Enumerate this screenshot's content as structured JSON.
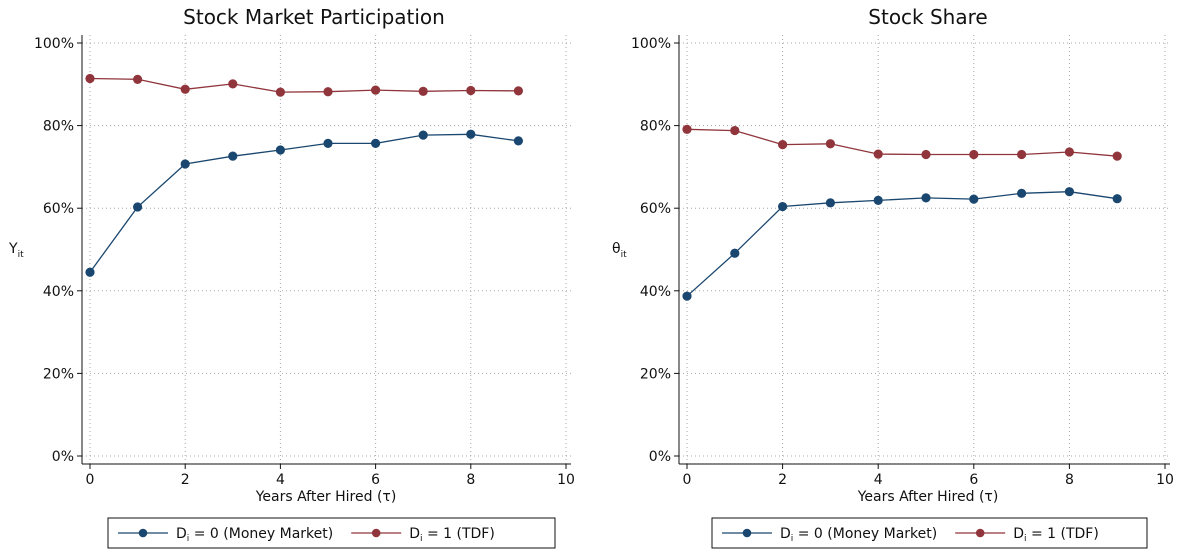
{
  "chart_data": [
    {
      "type": "line",
      "title": "Stock Market Participation",
      "xlabel": "Years After Hired (τ)",
      "ylabel": "Y",
      "ylabel_sub": "it",
      "xlim": [
        0,
        10
      ],
      "ylim": [
        0,
        1
      ],
      "xticks": [
        "0",
        "2",
        "4",
        "6",
        "8",
        "10"
      ],
      "yticks": [
        "0%",
        "20%",
        "40%",
        "60%",
        "80%",
        "100%"
      ],
      "grid": true,
      "legend_placement": "bottom",
      "x": [
        0,
        1,
        2,
        3,
        4,
        5,
        6,
        7,
        8,
        9
      ],
      "series": [
        {
          "name": "D = 0 (Money Market)",
          "legend_var": "D",
          "legend_sub": "i",
          "legend_rest": " = 0 (Money Market)",
          "color": "#1a476f",
          "values": [
            0.445,
            0.603,
            0.707,
            0.726,
            0.741,
            0.757,
            0.757,
            0.777,
            0.779,
            0.763
          ]
        },
        {
          "name": "D = 1 (TDF)",
          "legend_var": "D",
          "legend_sub": "i",
          "legend_rest": " = 1 (TDF)",
          "color": "#90353b",
          "values": [
            0.914,
            0.912,
            0.888,
            0.901,
            0.881,
            0.882,
            0.886,
            0.883,
            0.885,
            0.884
          ]
        }
      ]
    },
    {
      "type": "line",
      "title": "Stock Share",
      "xlabel": "Years After Hired (τ)",
      "ylabel": "θ",
      "ylabel_sub": "it",
      "xlim": [
        0,
        10
      ],
      "ylim": [
        0,
        1
      ],
      "xticks": [
        "0",
        "2",
        "4",
        "6",
        "8",
        "10"
      ],
      "yticks": [
        "0%",
        "20%",
        "40%",
        "60%",
        "80%",
        "100%"
      ],
      "grid": true,
      "legend_placement": "bottom",
      "x": [
        0,
        1,
        2,
        3,
        4,
        5,
        6,
        7,
        8,
        9
      ],
      "series": [
        {
          "name": "D = 0 (Money Market)",
          "legend_var": "D",
          "legend_sub": "i",
          "legend_rest": " = 0 (Money Market)",
          "color": "#1a476f",
          "values": [
            0.387,
            0.491,
            0.604,
            0.613,
            0.619,
            0.625,
            0.622,
            0.636,
            0.64,
            0.623
          ]
        },
        {
          "name": "D = 1 (TDF)",
          "legend_var": "D",
          "legend_sub": "i",
          "legend_rest": " = 1 (TDF)",
          "color": "#90353b",
          "values": [
            0.791,
            0.788,
            0.754,
            0.756,
            0.731,
            0.73,
            0.73,
            0.73,
            0.736,
            0.726
          ]
        }
      ]
    }
  ]
}
